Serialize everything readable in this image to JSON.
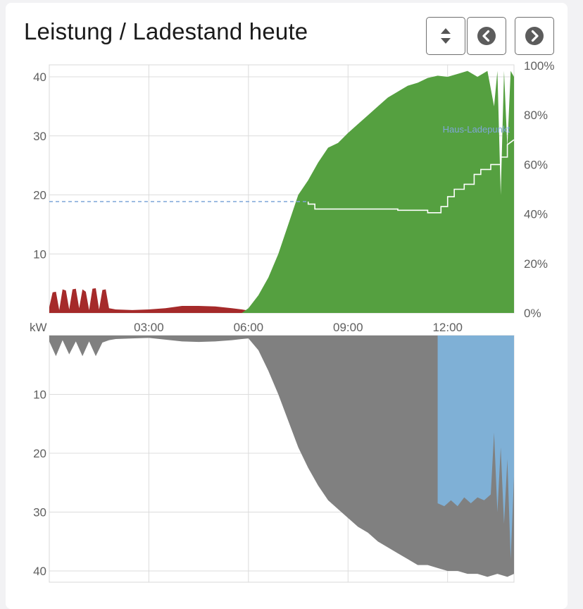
{
  "title": "Leistung / Ladestand heute",
  "buttons": {
    "sort": "sort-icon",
    "prev": "chevron-left-icon",
    "next": "chevron-right-icon"
  },
  "colors": {
    "grid_import": "#a52a2a",
    "pv": "#55a040",
    "consumption": "#808080",
    "charging": "#7fb0d6",
    "soc_line": "#7fa6d9"
  },
  "chart_data": [
    {
      "type": "area",
      "xlabel": "",
      "ylabel": "kW",
      "x_ticks": [
        "03:00",
        "06:00",
        "09:00",
        "12:00"
      ],
      "x_range_hours": [
        0,
        14
      ],
      "ylim_left": [
        0,
        42
      ],
      "y_ticks_left": [
        "10",
        "20",
        "30",
        "40"
      ],
      "ylim_right": [
        0,
        100
      ],
      "y_ticks_right": [
        "0%",
        "20%",
        "40%",
        "60%",
        "80%",
        "100%"
      ],
      "series": [
        {
          "x": [
            0,
            0.1,
            0.2,
            0.3,
            0.4,
            0.5,
            0.6,
            0.7,
            0.8,
            0.9,
            1.0,
            1.1,
            1.2,
            1.3,
            1.4,
            1.5,
            1.6,
            1.7,
            1.8,
            1.9,
            2.0,
            2.5,
            3.0,
            3.5,
            4.0,
            4.5,
            5.0,
            5.5,
            5.8,
            6.0
          ],
          "y": [
            1.0,
            3.5,
            3.6,
            0.5,
            4.0,
            3.8,
            0.6,
            4.0,
            4.1,
            0.8,
            4.0,
            3.6,
            0.5,
            4.1,
            4.2,
            0.6,
            3.9,
            4.0,
            0.8,
            0.7,
            0.6,
            0.5,
            0.6,
            0.8,
            1.2,
            1.2,
            1.1,
            0.8,
            0.6,
            0.4
          ]
        },
        {
          "x": [
            5.8,
            6.0,
            6.3,
            6.6,
            6.9,
            7.2,
            7.5,
            7.8,
            8.1,
            8.4,
            8.7,
            9.0,
            9.3,
            9.6,
            9.9,
            10.2,
            10.5,
            10.8,
            11.1,
            11.4,
            11.7,
            12.0,
            12.3,
            12.6,
            12.9,
            13.2,
            13.4,
            13.5,
            13.6,
            13.7,
            13.8,
            13.9,
            14.0
          ],
          "y": [
            0,
            0.8,
            3.0,
            6.0,
            10.0,
            15.0,
            20.0,
            22.5,
            25.5,
            28.0,
            28.8,
            30.5,
            32.0,
            33.5,
            35.0,
            36.5,
            37.5,
            38.5,
            39.0,
            39.8,
            40.2,
            40.0,
            40.5,
            41.0,
            40.0,
            41.0,
            35.0,
            41.0,
            20.0,
            41.0,
            28.0,
            41.0,
            40.0
          ]
        },
        {
          "x": [
            0,
            0.2,
            0.4,
            0.6,
            0.8,
            1.0,
            1.2,
            1.4,
            1.6,
            1.8,
            2.0,
            2.5,
            3.0,
            3.5,
            4.0,
            4.5,
            5.0,
            5.5,
            5.8,
            6.0,
            6.3,
            6.6,
            6.9,
            7.2,
            7.5,
            7.8,
            8.1,
            8.4,
            8.7,
            9.0,
            9.3,
            9.6,
            9.9,
            10.2,
            10.5,
            10.8,
            11.1,
            11.4,
            11.7,
            12.0,
            12.3,
            12.6,
            12.9,
            13.2,
            13.5,
            13.8,
            14.0
          ],
          "y": [
            1.0,
            3.5,
            0.8,
            3.2,
            1.0,
            3.5,
            1.0,
            3.5,
            1.2,
            0.8,
            0.6,
            0.5,
            0.4,
            0.7,
            1.0,
            1.1,
            1.0,
            0.8,
            0.6,
            0.5,
            2.5,
            6.0,
            10.0,
            14.5,
            19.0,
            22.5,
            25.5,
            28.0,
            29.5,
            31.0,
            32.5,
            33.5,
            35.0,
            36.0,
            37.0,
            38.0,
            39.0,
            39.0,
            39.5,
            40.0,
            40.0,
            40.5,
            40.5,
            41.0,
            40.5,
            41.0,
            40.5
          ]
        },
        {
          "x": [
            11.7,
            11.9,
            12.1,
            12.3,
            12.5,
            12.7,
            12.9,
            13.1,
            13.3,
            13.4,
            13.5,
            13.6,
            13.7,
            13.8,
            13.9,
            14.0
          ],
          "y": [
            28.5,
            29.0,
            28.0,
            29.0,
            27.5,
            28.5,
            27.5,
            28.0,
            27.0,
            16.5,
            30.0,
            19.0,
            32.0,
            21.0,
            38.0,
            24.0
          ]
        },
        {
          "name": "Haus-Ladepunkt",
          "x": [
            0,
            7.8,
            7.8,
            8.0,
            8.0,
            10.5,
            10.5,
            11.4,
            11.4,
            11.8,
            11.8,
            12.0,
            12.0,
            12.2,
            12.2,
            12.5,
            12.5,
            12.8,
            12.8,
            13.0,
            13.0,
            13.3,
            13.3,
            13.6,
            13.6,
            13.8,
            13.8,
            14.0
          ],
          "y": [
            45,
            45,
            44,
            44,
            42,
            42,
            41.5,
            41.5,
            40.5,
            40.5,
            43,
            43,
            47,
            47,
            50,
            50,
            52,
            52,
            56,
            56,
            58,
            58,
            60,
            60,
            63,
            63,
            68,
            70
          ]
        }
      ]
    }
  ]
}
